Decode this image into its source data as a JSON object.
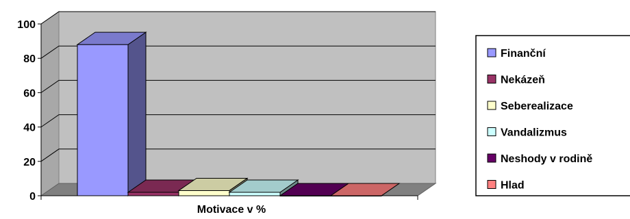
{
  "chart_data": {
    "type": "bar",
    "title": "",
    "xlabel": "Motivace v %",
    "ylabel": "",
    "ylim": [
      0,
      100
    ],
    "yticks": [
      0,
      20,
      40,
      60,
      80,
      100
    ],
    "grid": true,
    "legend_position": "right",
    "series": [
      {
        "name": "Finanční",
        "value": 88,
        "color": "#9999FF"
      },
      {
        "name": "Nekázeň",
        "value": 2,
        "color": "#993366"
      },
      {
        "name": "Seberealizace",
        "value": 3,
        "color": "#FFFFCC"
      },
      {
        "name": "Vandalizmus",
        "value": 2,
        "color": "#CCFFFF"
      },
      {
        "name": "Neshody v rodině",
        "value": 0,
        "color": "#660066"
      },
      {
        "name": "Hlad",
        "value": 0,
        "color": "#FF8080"
      }
    ]
  }
}
